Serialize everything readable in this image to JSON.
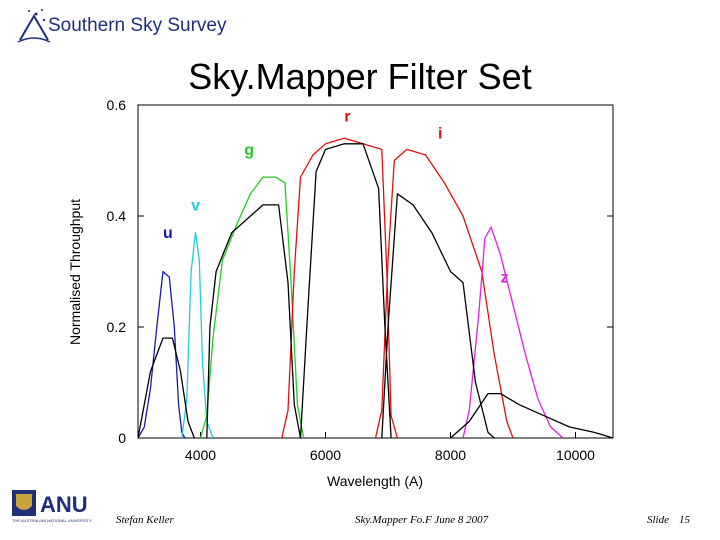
{
  "header": {
    "org": "Southern Sky Survey"
  },
  "slide": {
    "title": "Sky.Mapper Filter Set"
  },
  "footer": {
    "logo_text": "ANU",
    "logo_subtext": "THE AUSTRALIAN NATIONAL UNIVERSITY",
    "author": "Stefan Keller",
    "event": "Sky.Mapper Fo.F June 8 2007",
    "slide_label": "Slide",
    "slide_number": "15"
  },
  "chart_data": {
    "type": "line",
    "title": "",
    "xlabel": "Wavelength (A)",
    "ylabel": "Normalised Throughput",
    "xlim": [
      3000,
      10600
    ],
    "ylim": [
      0,
      0.6
    ],
    "xticks": [
      4000,
      6000,
      8000,
      10000
    ],
    "yticks": [
      0,
      0.2,
      0.4,
      0.6
    ],
    "ytick_labels": [
      "0",
      "0.2",
      "0.4",
      "0.6"
    ],
    "series": [
      {
        "name": "u",
        "color": "#1a1aaa",
        "label_at": [
          3400,
          0.36
        ],
        "points": [
          [
            3000,
            0
          ],
          [
            3100,
            0.02
          ],
          [
            3200,
            0.09
          ],
          [
            3300,
            0.2
          ],
          [
            3400,
            0.3
          ],
          [
            3500,
            0.29
          ],
          [
            3580,
            0.2
          ],
          [
            3650,
            0.06
          ],
          [
            3700,
            0.01
          ],
          [
            3750,
            0
          ]
        ]
      },
      {
        "name": "v",
        "color": "#22ccdd",
        "label_at": [
          3850,
          0.41
        ],
        "points": [
          [
            3700,
            0
          ],
          [
            3780,
            0.07
          ],
          [
            3850,
            0.3
          ],
          [
            3920,
            0.37
          ],
          [
            3980,
            0.32
          ],
          [
            4030,
            0.14
          ],
          [
            4100,
            0.03
          ],
          [
            4200,
            0
          ]
        ]
      },
      {
        "name": "g",
        "color": "#22cc22",
        "label_at": [
          4700,
          0.51
        ],
        "points": [
          [
            4000,
            0
          ],
          [
            4100,
            0.04
          ],
          [
            4200,
            0.18
          ],
          [
            4350,
            0.32
          ],
          [
            4600,
            0.39
          ],
          [
            4800,
            0.44
          ],
          [
            5000,
            0.47
          ],
          [
            5200,
            0.47
          ],
          [
            5350,
            0.46
          ],
          [
            5450,
            0.28
          ],
          [
            5550,
            0.06
          ],
          [
            5650,
            0
          ]
        ]
      },
      {
        "name": "r",
        "color": "#dd1111",
        "label_at": [
          6300,
          0.57
        ],
        "points": [
          [
            5300,
            0
          ],
          [
            5400,
            0.05
          ],
          [
            5500,
            0.3
          ],
          [
            5600,
            0.47
          ],
          [
            5800,
            0.51
          ],
          [
            6000,
            0.53
          ],
          [
            6300,
            0.54
          ],
          [
            6600,
            0.53
          ],
          [
            6900,
            0.52
          ],
          [
            6980,
            0.3
          ],
          [
            7050,
            0.04
          ],
          [
            7150,
            0
          ]
        ]
      },
      {
        "name": "i",
        "color": "#dd1111",
        "label_at": [
          7800,
          0.54
        ],
        "points": [
          [
            6800,
            0
          ],
          [
            6900,
            0.05
          ],
          [
            7000,
            0.32
          ],
          [
            7100,
            0.5
          ],
          [
            7300,
            0.52
          ],
          [
            7600,
            0.51
          ],
          [
            7900,
            0.46
          ],
          [
            8200,
            0.4
          ],
          [
            8500,
            0.3
          ],
          [
            8700,
            0.15
          ],
          [
            8900,
            0.03
          ],
          [
            9000,
            0
          ]
        ]
      },
      {
        "name": "z",
        "color": "#dd22dd",
        "label_at": [
          8800,
          0.28
        ],
        "points": [
          [
            8200,
            0
          ],
          [
            8300,
            0.05
          ],
          [
            8450,
            0.22
          ],
          [
            8550,
            0.36
          ],
          [
            8650,
            0.38
          ],
          [
            8800,
            0.33
          ],
          [
            9000,
            0.24
          ],
          [
            9200,
            0.15
          ],
          [
            9400,
            0.07
          ],
          [
            9600,
            0.02
          ],
          [
            9800,
            0
          ]
        ]
      },
      {
        "name": "",
        "color": "#000000",
        "points": [
          [
            3000,
            0
          ],
          [
            3200,
            0.12
          ],
          [
            3400,
            0.18
          ],
          [
            3550,
            0.18
          ],
          [
            3680,
            0.12
          ],
          [
            3800,
            0.03
          ],
          [
            3900,
            0
          ]
        ]
      },
      {
        "name": "",
        "color": "#000000",
        "points": [
          [
            4100,
            0
          ],
          [
            4150,
            0.2
          ],
          [
            4250,
            0.3
          ],
          [
            4500,
            0.37
          ],
          [
            4800,
            0.4
          ],
          [
            5000,
            0.42
          ],
          [
            5250,
            0.42
          ],
          [
            5400,
            0.28
          ],
          [
            5500,
            0.06
          ],
          [
            5600,
            0
          ]
        ]
      },
      {
        "name": "",
        "color": "#000000",
        "points": [
          [
            5600,
            0
          ],
          [
            5700,
            0.2
          ],
          [
            5850,
            0.48
          ],
          [
            6000,
            0.52
          ],
          [
            6300,
            0.53
          ],
          [
            6600,
            0.53
          ],
          [
            6850,
            0.45
          ],
          [
            6950,
            0.2
          ],
          [
            7050,
            0
          ]
        ]
      },
      {
        "name": "",
        "color": "#000000",
        "points": [
          [
            6900,
            0
          ],
          [
            7000,
            0.2
          ],
          [
            7150,
            0.44
          ],
          [
            7400,
            0.42
          ],
          [
            7700,
            0.37
          ],
          [
            8000,
            0.3
          ],
          [
            8200,
            0.28
          ],
          [
            8400,
            0.1
          ],
          [
            8600,
            0.01
          ],
          [
            8700,
            0
          ]
        ]
      },
      {
        "name": "",
        "color": "#000000",
        "points": [
          [
            8000,
            0
          ],
          [
            8300,
            0.03
          ],
          [
            8600,
            0.08
          ],
          [
            8800,
            0.08
          ],
          [
            9100,
            0.06
          ],
          [
            9500,
            0.04
          ],
          [
            9900,
            0.02
          ],
          [
            10300,
            0.01
          ],
          [
            10600,
            0
          ]
        ]
      }
    ]
  }
}
